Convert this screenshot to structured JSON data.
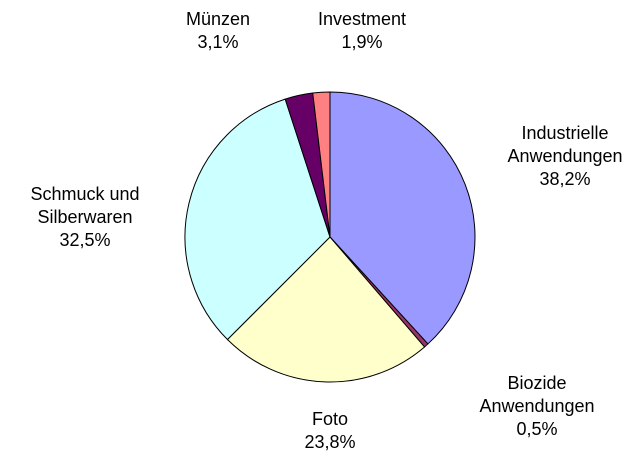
{
  "chart_data": {
    "type": "pie",
    "categories": [
      "Industrielle\nAnwendungen",
      "Biozide\nAnwendungen",
      "Foto",
      "Schmuck und\nSilberwaren",
      "Münzen",
      "Investment"
    ],
    "values": [
      38.2,
      0.5,
      23.8,
      32.5,
      3.1,
      1.9
    ],
    "value_labels": [
      "38,2%",
      "0,5%",
      "23,8%",
      "32,5%",
      "3,1%",
      "1,9%"
    ],
    "colors": [
      "#9999ff",
      "#993366",
      "#ffffcc",
      "#ccffff",
      "#660066",
      "#ff8080"
    ]
  }
}
